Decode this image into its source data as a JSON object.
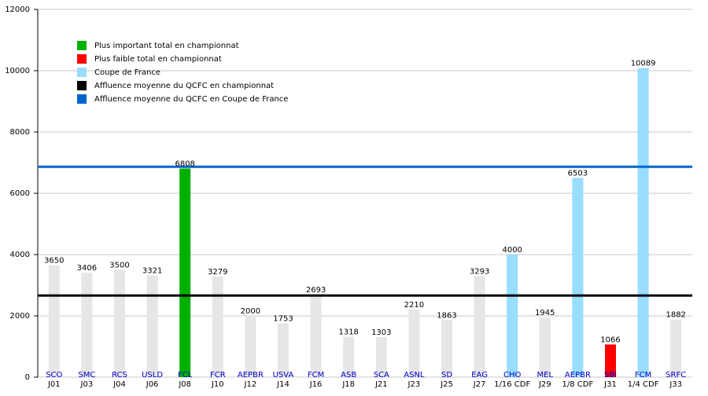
{
  "chart_data": {
    "type": "bar",
    "categories": [
      "SCO",
      "SMC",
      "RCS",
      "USLD",
      "FCL",
      "FCR",
      "AEPBR",
      "USVA",
      "FCM",
      "ASB",
      "SCA",
      "ASNL",
      "SD",
      "EAG",
      "CHO",
      "MEL",
      "AEPBR",
      "SBI",
      "FCM",
      "SRFC"
    ],
    "rounds": [
      "J01",
      "J03",
      "J04",
      "J06",
      "J08",
      "J10",
      "J12",
      "J14",
      "J16",
      "J18",
      "J21",
      "J23",
      "J25",
      "J27",
      "1/16 CDF",
      "J29",
      "1/8 CDF",
      "J31",
      "1/4 CDF",
      "J33"
    ],
    "values": [
      3650,
      3406,
      3500,
      3321,
      6808,
      3279,
      2000,
      1753,
      2693,
      1318,
      1303,
      2210,
      1863,
      3293,
      4000,
      1945,
      6503,
      1066,
      10089,
      1882
    ],
    "colors": [
      "#e6e6e6",
      "#e6e6e6",
      "#e6e6e6",
      "#e6e6e6",
      "#00b000",
      "#e6e6e6",
      "#e6e6e6",
      "#e6e6e6",
      "#e6e6e6",
      "#e6e6e6",
      "#e6e6e6",
      "#e6e6e6",
      "#e6e6e6",
      "#e6e6e6",
      "#99ddff",
      "#e6e6e6",
      "#99ddff",
      "#ff0000",
      "#99ddff",
      "#e6e6e6"
    ],
    "bar_legend": [
      {
        "name": "Plus important total en championnat",
        "color": "#00b000"
      },
      {
        "name": "Plus faible total en championnat",
        "color": "#ff0000"
      },
      {
        "name": "Coupe de France",
        "color": "#99ddff"
      }
    ],
    "lines": [
      {
        "name": "Affluence moyenne du QCFC en championnat",
        "color": "#000000",
        "value": 2664
      },
      {
        "name": "Affluence moyenne du QCFC en Coupe de France",
        "color": "#0066cc",
        "value": 6864
      }
    ],
    "ylim": [
      0,
      12000
    ],
    "yticks": [
      0,
      2000,
      4000,
      6000,
      8000,
      10000,
      12000
    ],
    "grid": true
  }
}
